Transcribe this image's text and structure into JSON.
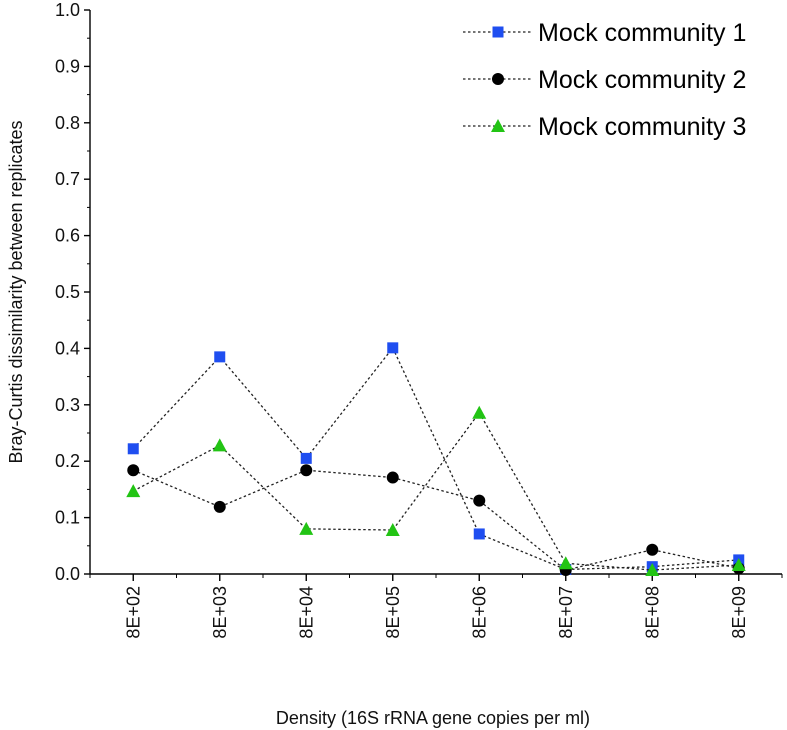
{
  "chart_data": {
    "type": "line",
    "title": "",
    "xlabel": "Density (16S rRNA gene copies per ml)",
    "ylabel": "Bray-Curtis dissimilarity between replicates",
    "categories": [
      "8E+02",
      "8E+03",
      "8E+04",
      "8E+05",
      "8E+06",
      "8E+07",
      "8E+08",
      "8E+09"
    ],
    "ylim": [
      0.0,
      1.0
    ],
    "yticks": [
      "0.0",
      "0.1",
      "0.2",
      "0.3",
      "0.4",
      "0.5",
      "0.6",
      "0.7",
      "0.8",
      "0.9",
      "1.0"
    ],
    "grid": false,
    "legend_position": "top-right",
    "series": [
      {
        "name": "Mock community 1",
        "marker": "square",
        "color": "#1f4ef0",
        "values": [
          0.222,
          0.385,
          0.205,
          0.401,
          0.071,
          0.008,
          0.013,
          0.025
        ]
      },
      {
        "name": "Mock community 2",
        "marker": "circle",
        "color": "#000000",
        "values": [
          0.184,
          0.119,
          0.184,
          0.171,
          0.13,
          0.007,
          0.043,
          0.01
        ]
      },
      {
        "name": "Mock community 3",
        "marker": "triangle",
        "color": "#22c414",
        "values": [
          0.147,
          0.228,
          0.08,
          0.078,
          0.286,
          0.019,
          0.007,
          0.016
        ]
      }
    ]
  }
}
